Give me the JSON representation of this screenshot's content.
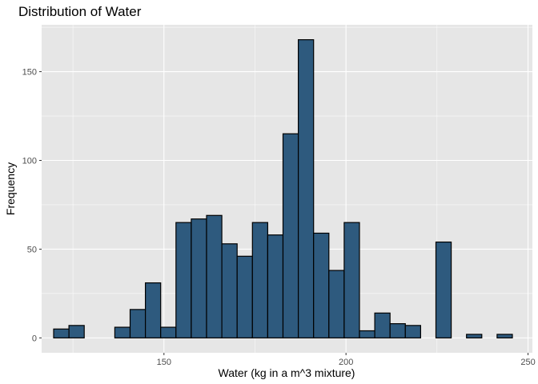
{
  "chart_data": {
    "type": "bar",
    "subtype": "histogram",
    "title": "Distribution of Water",
    "xlabel": "Water (kg in a m^3 mixture)",
    "ylabel": "Frequency",
    "bin_width": 4.2,
    "bin_start": 119.7,
    "values": [
      5,
      7,
      0,
      0,
      6,
      16,
      31,
      6,
      65,
      67,
      69,
      53,
      46,
      65,
      58,
      115,
      168,
      59,
      38,
      65,
      4,
      14,
      8,
      7,
      0,
      54,
      0,
      2,
      0,
      2
    ],
    "xlim": [
      116.4,
      251.2
    ],
    "ylim": [
      -8.4,
      176.4
    ],
    "x_ticks": [
      150,
      200,
      250
    ],
    "x_tick_labels": [
      "150",
      "200",
      "250"
    ],
    "y_ticks": [
      0,
      50,
      100,
      150
    ],
    "y_tick_labels": [
      "0",
      "50",
      "100",
      "150"
    ],
    "grid": true,
    "legend": "none",
    "colors": {
      "bar_fill": "#2e5a7e",
      "bar_stroke": "#000000",
      "panel_bg": "#e6e6e6",
      "grid_major": "#ffffff",
      "tick_text": "#4d4d4d"
    }
  }
}
